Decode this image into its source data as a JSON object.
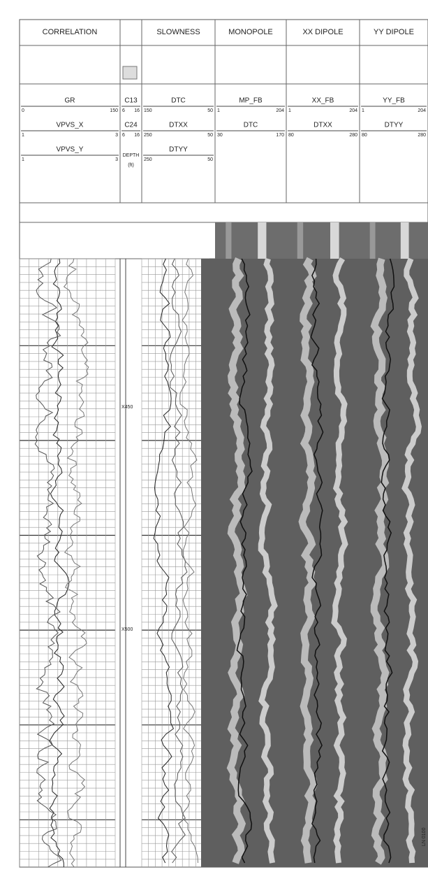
{
  "tracks": [
    {
      "title": "CORRELATION",
      "curves": [
        {
          "name": "GR",
          "left": 0,
          "right": 150
        },
        {
          "name": "VPVS_X",
          "left": 1,
          "right": 3
        },
        {
          "name": "VPVS_Y",
          "left": 1,
          "right": 3
        }
      ]
    },
    {
      "curves": [
        {
          "name": "C13",
          "left": 6,
          "right": 16
        },
        {
          "name": "C24",
          "left": 6,
          "right": 16
        }
      ],
      "depth_label": "DEPTH",
      "depth_unit": "(ft)"
    },
    {
      "title": "SLOWNESS",
      "curves": [
        {
          "name": "DTC",
          "left": 150,
          "right": 50
        },
        {
          "name": "DTXX",
          "left": 250,
          "right": 50
        },
        {
          "name": "DTYY",
          "left": 250,
          "right": 50
        }
      ]
    },
    {
      "title": "MONOPOLE",
      "curves": [
        {
          "name": "MP_FB",
          "left": 1,
          "right": 204
        },
        {
          "name": "DTC",
          "left": 30,
          "right": 170
        }
      ]
    },
    {
      "title": "XX DIPOLE",
      "curves": [
        {
          "name": "XX_FB",
          "left": 1,
          "right": 204
        },
        {
          "name": "DTXX",
          "left": 80,
          "right": 280
        }
      ]
    },
    {
      "title": "YY DIPOLE",
      "curves": [
        {
          "name": "YY_FB",
          "left": 1,
          "right": 204
        },
        {
          "name": "DTYY",
          "left": 80,
          "right": 280
        }
      ]
    }
  ],
  "depths": [
    "X450",
    "X500"
  ],
  "side_tag": "LN 0100"
}
